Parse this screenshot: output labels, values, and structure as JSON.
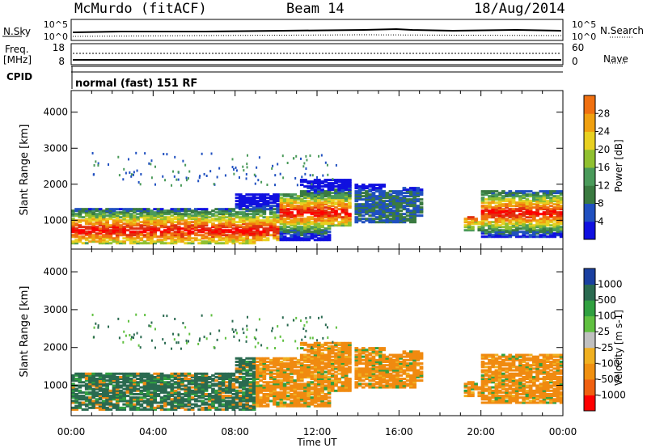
{
  "header": {
    "station": "McMurdo (fitACF)",
    "beam": "Beam 14",
    "date": "18/Aug/2014"
  },
  "noise_panel": {
    "left_label": "N.Sky",
    "right_label": "N.Search",
    "top_tick": "10^5",
    "bottom_tick": "10^0"
  },
  "freq_panel": {
    "left_label_line1": "Freq.",
    "left_label_line2": "[MHz]",
    "left_ticks": [
      "18",
      "8"
    ],
    "right_ticks": [
      "60",
      "0"
    ],
    "right_label": "Nave"
  },
  "cpid": {
    "label": "CPID",
    "value": "normal (fast) 151 RF"
  },
  "colors": {
    "power_scale": [
      "#1010e0",
      "#2050c0",
      "#3a7a40",
      "#4a9a5a",
      "#90c030",
      "#e8d020",
      "#f0a010",
      "#f07010",
      "#e03010",
      "#ff0000"
    ],
    "velocity_scale": [
      "#ff0000",
      "#f05010",
      "#f08a10",
      "#f0b020",
      "#c0c0c0",
      "#60c040",
      "#30a040",
      "#2a6a50",
      "#1a40a0",
      "#1010e0"
    ]
  },
  "chart_data": [
    {
      "type": "heatmap",
      "name": "power",
      "ylabel": "Slant Range [km]",
      "ylim": [
        200,
        4600
      ],
      "yticks": [
        "1000",
        "2000",
        "3000",
        "4000"
      ],
      "colorbar": {
        "label": "Power [dB]",
        "range": [
          0,
          32
        ],
        "ticks": [
          "4",
          "8",
          "12",
          "16",
          "20",
          "24",
          "28"
        ]
      }
    },
    {
      "type": "heatmap",
      "name": "velocity",
      "ylabel": "Slant Range [km]",
      "ylim": [
        200,
        4600
      ],
      "yticks": [
        "1000",
        "2000",
        "3000",
        "4000"
      ],
      "colorbar": {
        "label": "Velocity [m s-1]",
        "ticks": [
          "1000",
          "500",
          "100",
          "25",
          "-25",
          "-100",
          "-500",
          "-1000"
        ]
      }
    }
  ],
  "x_axis": {
    "label": "Time UT",
    "ticks": [
      "00:00",
      "04:00",
      "08:00",
      "12:00",
      "16:00",
      "20:00",
      "00:00"
    ]
  }
}
